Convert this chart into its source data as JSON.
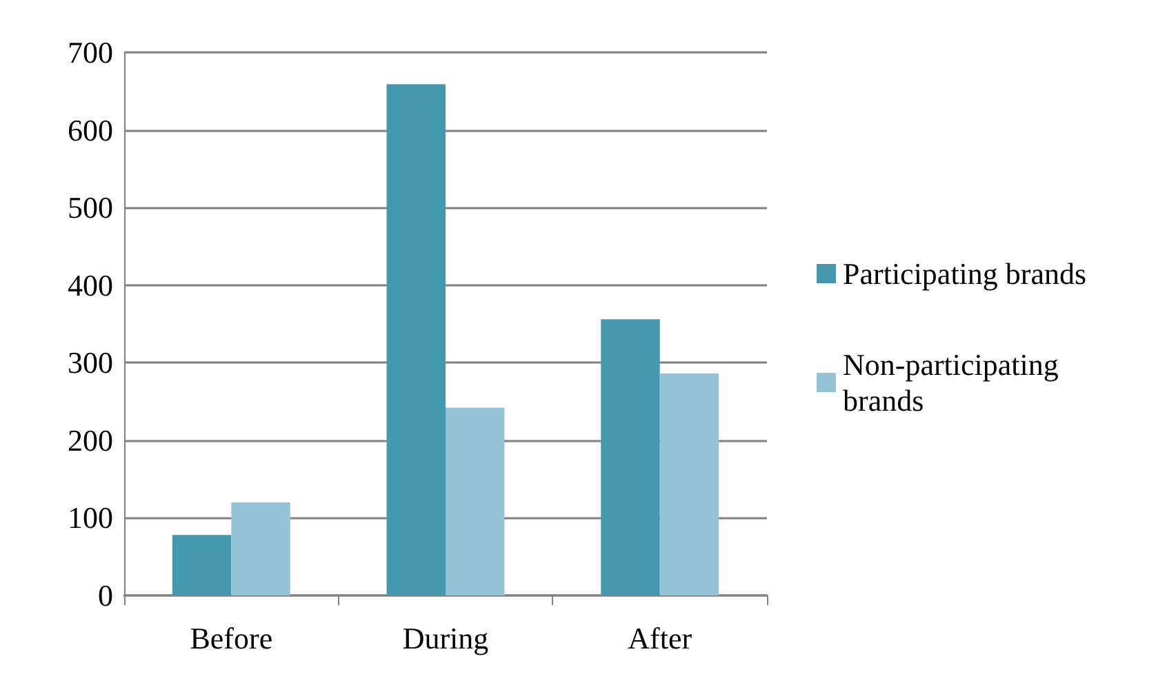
{
  "chart_data": {
    "type": "bar",
    "categories": [
      "Before",
      "During",
      "After"
    ],
    "series": [
      {
        "name": "Participating brands",
        "color": "#4398b0",
        "values": [
          78,
          659,
          356
        ]
      },
      {
        "name": "Non-participating brands",
        "color": "#93c3d5",
        "values": [
          120,
          242,
          286
        ]
      }
    ],
    "ylim": [
      0,
      700
    ],
    "yticks": [
      0,
      100,
      200,
      300,
      400,
      500,
      600,
      700
    ],
    "grid": "y",
    "legend": "right"
  }
}
